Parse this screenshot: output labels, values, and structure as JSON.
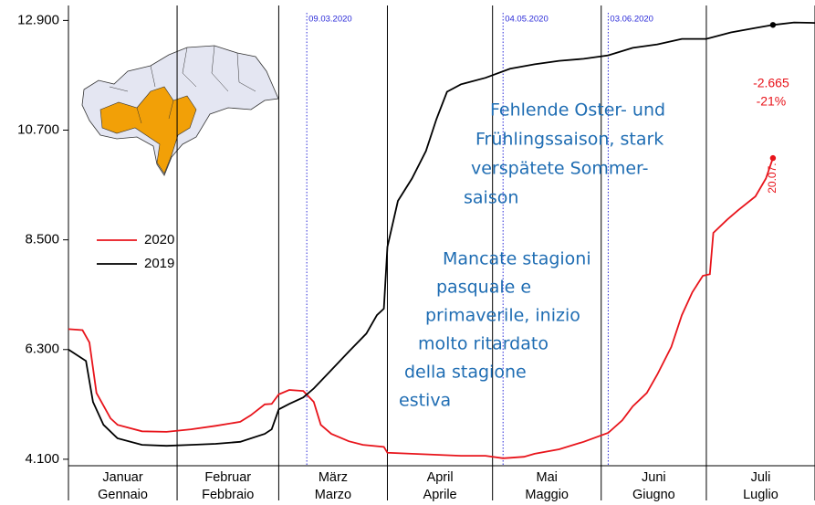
{
  "chart_data": {
    "type": "line",
    "xlim": [
      0,
      213
    ],
    "ylim": [
      3970,
      13200
    ],
    "xticks": [
      0,
      31,
      60,
      91,
      121,
      152,
      182,
      213
    ],
    "months": [
      [
        "Januar",
        "Gennaio"
      ],
      [
        "Februar",
        "Febbraio"
      ],
      [
        "März",
        "Marzo"
      ],
      [
        "April",
        "Aprile"
      ],
      [
        "Mai",
        "Maggio"
      ],
      [
        "Juni",
        "Giugno"
      ],
      [
        "Juli",
        "Luglio"
      ]
    ],
    "yticks": [
      {
        "value": 4100,
        "label": "4.100"
      },
      {
        "value": 6300,
        "label": "6.300"
      },
      {
        "value": 8500,
        "label": "8.500"
      },
      {
        "value": 10700,
        "label": "10.700"
      },
      {
        "value": 12900,
        "label": "12.900"
      }
    ],
    "events": [
      {
        "x": 68,
        "label": "09.03.2020"
      },
      {
        "x": 124,
        "label": "04.05.2020"
      },
      {
        "x": 154,
        "label": "03.06.2020"
      }
    ],
    "series": [
      {
        "name": "2020",
        "color": "#e8141b",
        "x": [
          0,
          4,
          6,
          8,
          12,
          14,
          21,
          28,
          35,
          42,
          49,
          52,
          56,
          58,
          60,
          63,
          67,
          70,
          72,
          75,
          80,
          84,
          90,
          91,
          98,
          105,
          112,
          119,
          124,
          126,
          130,
          133,
          140,
          147,
          154,
          158,
          161,
          165,
          168,
          172,
          175,
          178,
          181,
          183,
          184,
          188,
          191,
          196,
          199,
          201
        ],
        "values": [
          6710,
          6690,
          6440,
          5430,
          4920,
          4790,
          4660,
          4650,
          4700,
          4770,
          4850,
          4980,
          5200,
          5210,
          5400,
          5490,
          5470,
          5250,
          4790,
          4610,
          4460,
          4390,
          4350,
          4230,
          4210,
          4190,
          4170,
          4170,
          4120,
          4130,
          4150,
          4210,
          4300,
          4450,
          4630,
          4880,
          5160,
          5430,
          5800,
          6350,
          6990,
          7450,
          7780,
          7810,
          8640,
          8910,
          9090,
          9370,
          9730,
          10140
        ]
      },
      {
        "name": "2019",
        "color": "#000000",
        "x": [
          0,
          5,
          7,
          10,
          14,
          21,
          28,
          35,
          42,
          49,
          56,
          58,
          60,
          63,
          67,
          70,
          75,
          80,
          85,
          88,
          90,
          91,
          94,
          98,
          102,
          105,
          108,
          112,
          119,
          126,
          133,
          140,
          147,
          154,
          161,
          168,
          175,
          182,
          189,
          196,
          201,
          207,
          213
        ],
        "values": [
          6300,
          6070,
          5250,
          4790,
          4520,
          4390,
          4370,
          4390,
          4410,
          4450,
          4610,
          4700,
          5100,
          5210,
          5340,
          5520,
          5890,
          6260,
          6620,
          6990,
          7120,
          8360,
          9280,
          9730,
          10280,
          10920,
          11470,
          11620,
          11750,
          11930,
          12020,
          12090,
          12130,
          12200,
          12350,
          12420,
          12530,
          12530,
          12660,
          12750,
          12810,
          12860,
          12850
        ]
      }
    ],
    "end_label": "20.07.",
    "difference": [
      "-2.665",
      "-21%"
    ],
    "note_de": [
      "Fehlende Oster- und",
      "Frühlingssaison, stark",
      "verspätete Sommer-",
      "saison"
    ],
    "note_it": [
      "Mancate stagioni",
      "pasquale e",
      "primaverile, inizio",
      "molto ritardato",
      "della stagione",
      "estiva"
    ]
  }
}
